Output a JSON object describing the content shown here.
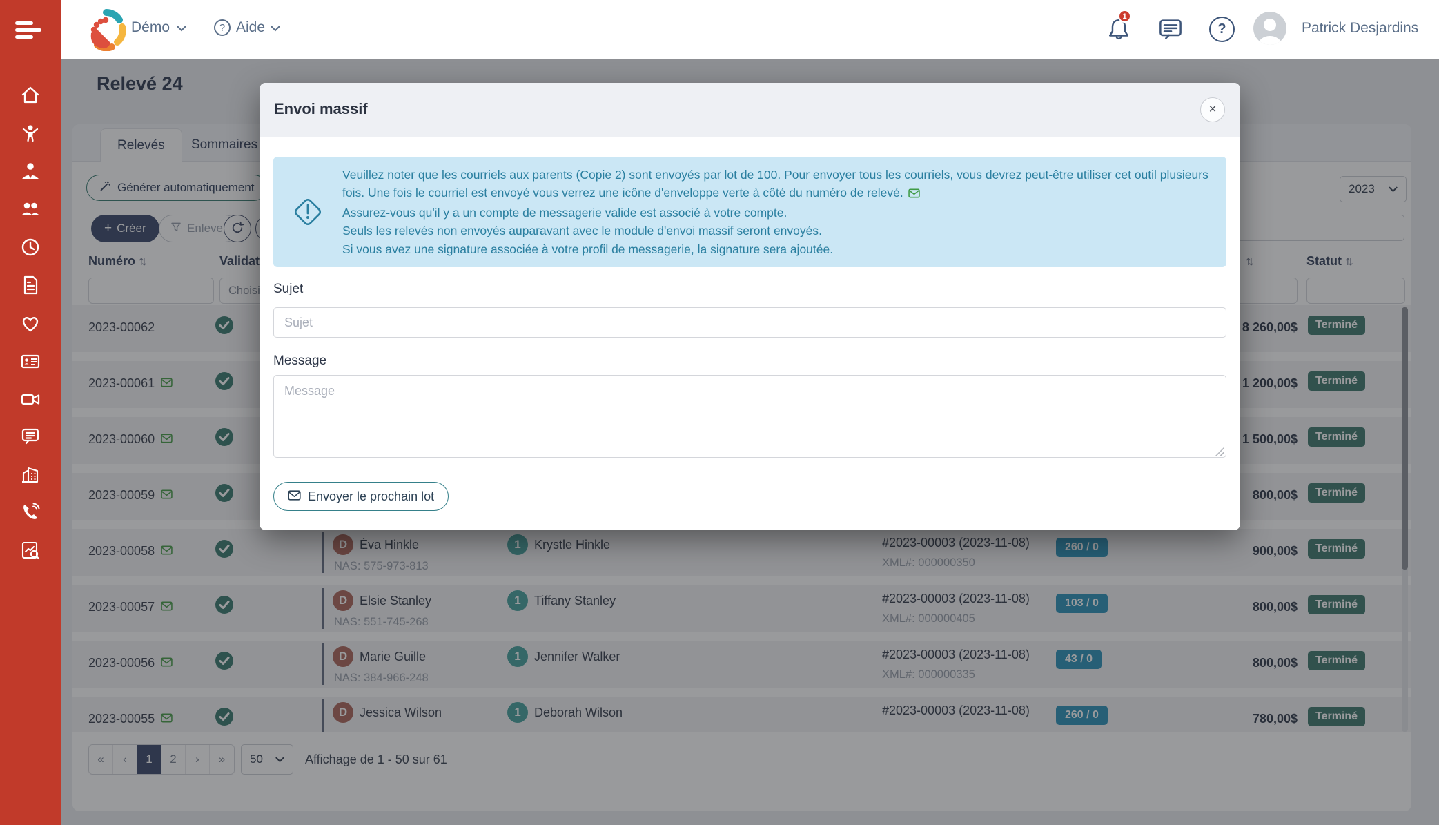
{
  "colors": {
    "sidebar_red": "#c13a2a",
    "accent_teal": "#3c7e74",
    "create_button_navy": "#3e4c6e",
    "alert_bg": "#cbe7f5",
    "alert_text": "#2a7fa0",
    "count_badge_blue": "#3094ba",
    "status_badge_green": "#427a70",
    "check_green": "#3d7c71",
    "envelope_green": "#4c9e4c",
    "notification_red": "#cc3b2e"
  },
  "icons": {
    "menu": "hamburger-bars",
    "notifications": "bell",
    "messages": "chat-bubble",
    "help": "question-circle",
    "sort": "⇅",
    "close": "×",
    "envelope": "✉",
    "check": "✓",
    "chevron": "⌄",
    "alert": "diamond-exclamation",
    "generate": "magic-wand",
    "filter": "funnel",
    "refresh": "circular-arrows",
    "more": "⋮"
  },
  "sidebar": {
    "items": [
      "home",
      "child",
      "educator",
      "group",
      "schedule",
      "billing",
      "health",
      "contact-card",
      "camera",
      "messages",
      "organization",
      "phone",
      "reports"
    ]
  },
  "topbar": {
    "brand": "Démo",
    "help_label": "Aide",
    "notification_count": "1",
    "user_name": "Patrick Desjardins"
  },
  "page": {
    "title": "Relevé 24"
  },
  "tabs": [
    {
      "label": "Relevés",
      "active": true
    },
    {
      "label": "Sommaires",
      "active": false
    }
  ],
  "toolbar": {
    "generate_label": "Générer automatiquement",
    "create_prefix": "+",
    "create_label": "Créer",
    "remove_label": "Enlever",
    "year_value": "2023",
    "validation_filter": "Choisir"
  },
  "table": {
    "headers": {
      "numero": "Numéro",
      "validation": "Validation",
      "statut": "Statut"
    },
    "rows": [
      {
        "numero": "2023-00062",
        "sent": false,
        "amount": "8 260,00$",
        "status": "Terminé"
      },
      {
        "numero": "2023-00061",
        "sent": true,
        "amount": "1 200,00$",
        "status": "Terminé"
      },
      {
        "numero": "2023-00060",
        "sent": true,
        "amount": "1 500,00$",
        "status": "Terminé"
      },
      {
        "numero": "2023-00059",
        "sent": true,
        "amount": "800,00$",
        "status": "Terminé"
      },
      {
        "numero": "2023-00058",
        "sent": true,
        "parent_initial": "D",
        "parent_name": "Éva Hinkle",
        "parent_nas": "NAS: 575-973-813",
        "child_initial": "1",
        "child_name": "Krystle Hinkle",
        "fiscal_ref": "#2023-00003 (2023-11-08)",
        "xml_ref": "XML#: 000000350",
        "count_badge": "260 / 0",
        "amount": "900,00$",
        "status": "Terminé"
      },
      {
        "numero": "2023-00057",
        "sent": true,
        "parent_initial": "D",
        "parent_name": "Elsie Stanley",
        "parent_nas": "NAS: 551-745-268",
        "child_initial": "1",
        "child_name": "Tiffany Stanley",
        "fiscal_ref": "#2023-00003 (2023-11-08)",
        "xml_ref": "XML#: 000000405",
        "count_badge": "103 / 0",
        "amount": "800,00$",
        "status": "Terminé"
      },
      {
        "numero": "2023-00056",
        "sent": true,
        "parent_initial": "D",
        "parent_name": "Marie Guille",
        "parent_nas": "NAS: 384-966-248",
        "child_initial": "1",
        "child_name": "Jennifer Walker",
        "fiscal_ref": "#2023-00003 (2023-11-08)",
        "xml_ref": "XML#: 000000335",
        "count_badge": "43 / 0",
        "amount": "800,00$",
        "status": "Terminé"
      },
      {
        "numero": "2023-00055",
        "sent": true,
        "parent_initial": "D",
        "parent_name": "Jessica Wilson",
        "child_initial": "1",
        "child_name": "Deborah Wilson",
        "fiscal_ref": "#2023-00003 (2023-11-08)",
        "count_badge": "260 / 0",
        "amount": "780,00$",
        "status": "Terminé"
      }
    ]
  },
  "pagination": {
    "buttons": [
      "«",
      "‹",
      "1",
      "2",
      "›",
      "»"
    ],
    "active_page": "1",
    "page_size": "50",
    "summary": "Affichage de 1 - 50 sur 61"
  },
  "modal": {
    "title": "Envoi massif",
    "close_label": "×",
    "alert_lines": [
      "Veuillez noter que les courriels aux parents (Copie 2) sont envoyés par lot de 100. Pour envoyer tous les courriels, vous devrez peut-être utiliser cet outil plusieurs",
      "fois. Une fois le courriel est envoyé vous verrez une icône d'enveloppe verte à côté du numéro de relevé.",
      "Assurez-vous qu'il y a un compte de messagerie valide est associé à votre compte.",
      "Seuls les relevés non envoyés auparavant avec le module d'envoi massif seront envoyés.",
      "Si vous avez une signature associée à votre profil de messagerie, la signature sera ajoutée."
    ],
    "subject_label": "Sujet",
    "subject_placeholder": "Sujet",
    "message_label": "Message",
    "message_placeholder": "Message",
    "send_button_label": "Envoyer le prochain lot"
  }
}
